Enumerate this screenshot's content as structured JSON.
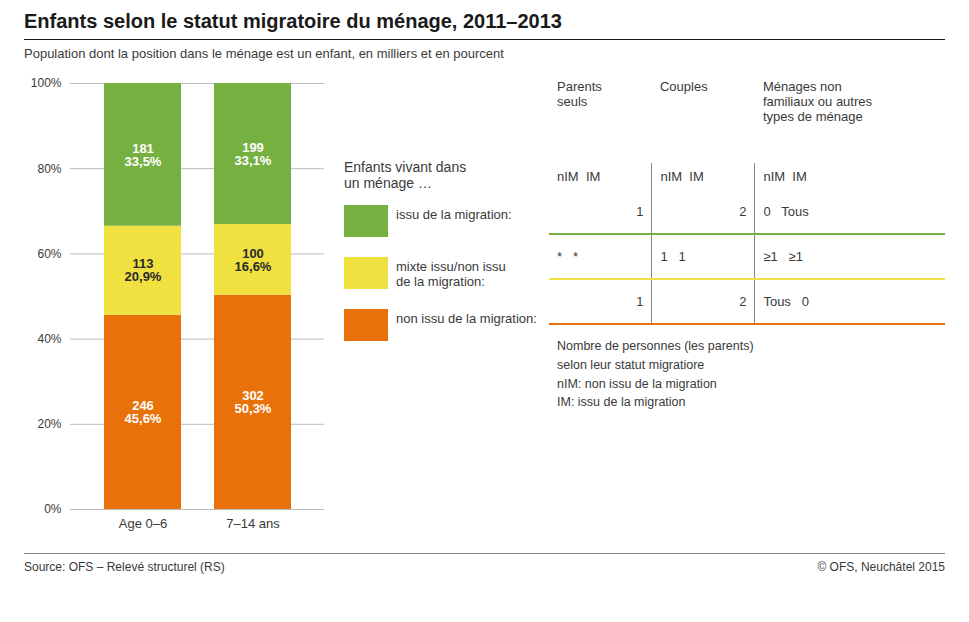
{
  "chart_data": {
    "type": "bar",
    "title": "Enfants selon le statut migratoire du ménage, 2011–2013",
    "subtitle": "Population dont la position dans le ménage est un enfant, en milliers et en pourcent",
    "categories": [
      "Age 0–6",
      "7–14 ans"
    ],
    "stacked": true,
    "data_labels": true,
    "grid": true,
    "legend": "right",
    "legend_title": "Enfants vivant dans\nun ménage …",
    "ylim": [
      0,
      100
    ],
    "yticks": [
      {
        "value": 0,
        "label": "0%"
      },
      {
        "value": 20,
        "label": "20%"
      },
      {
        "value": 40,
        "label": "40%"
      },
      {
        "value": 60,
        "label": "60%"
      },
      {
        "value": 80,
        "label": "80%"
      },
      {
        "value": 100,
        "label": "100%"
      }
    ],
    "series": [
      {
        "name": "non issu de la migration:",
        "color": "#E8710A",
        "values": [
          45.6,
          50.3
        ],
        "value_labels": [
          "246\n45,6%",
          "302\n50,3%"
        ]
      },
      {
        "name": "mixte issu/non issu\nde la migration:",
        "color": "#F0E040",
        "values": [
          20.9,
          16.6
        ],
        "value_labels": [
          "113\n20,9%",
          "100\n16,6%"
        ]
      },
      {
        "name": "issu de la migration:",
        "color": "#76B041",
        "values": [
          33.5,
          33.1
        ],
        "value_labels": [
          "181\n33,5%",
          "199\n33,1%"
        ]
      }
    ],
    "table": {
      "col_headers": [
        "Parents\nseuls",
        "Couples",
        "Ménages non\nfamiliaux ou autres\ntypes de ménage"
      ],
      "subheaders": [
        "nIM  IM",
        "nIM  IM",
        "nIM  IM"
      ],
      "rows": [
        {
          "cells": [
            "1",
            "2",
            "0   Tous"
          ],
          "color": "#76B041"
        },
        {
          "cells": [
            "*   *",
            "1   1",
            "≥1   ≥1"
          ],
          "color": "#F0E040"
        },
        {
          "cells": [
            "1",
            "2",
            "Tous   0"
          ],
          "color": "#E8710A"
        }
      ],
      "note": "Nombre de personnes (les parents)\nselon leur statut migratiore\nnIM: non issu de la migration\nIM: issu de la migration"
    },
    "source": [
      "Source: OFS – Relevé structurel (RS)",
      "© OFS, Neuchâtel 2015"
    ]
  }
}
